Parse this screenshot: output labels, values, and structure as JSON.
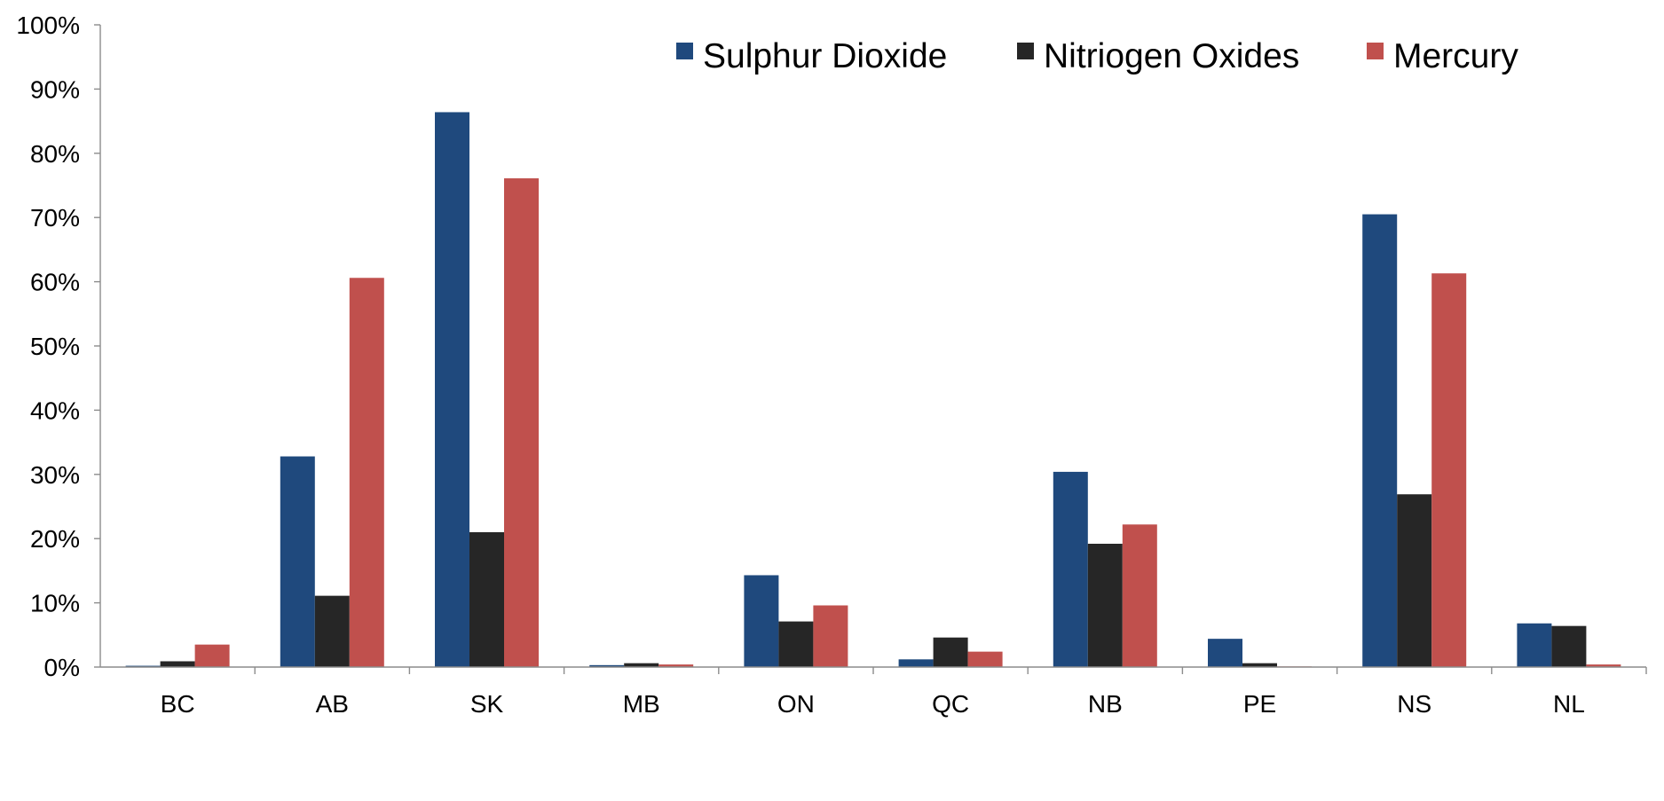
{
  "chart_data": {
    "type": "bar",
    "categories": [
      "BC",
      "AB",
      "SK",
      "MB",
      "ON",
      "QC",
      "NB",
      "PE",
      "NS",
      "NL"
    ],
    "series": [
      {
        "name": "Sulphur Dioxide",
        "color": "#1f497d",
        "values": [
          0.2,
          32.8,
          86.4,
          0.3,
          14.3,
          1.2,
          30.4,
          4.4,
          70.5,
          6.8
        ]
      },
      {
        "name": "Nitriogen Oxides",
        "color": "#262626",
        "values": [
          0.9,
          11.1,
          21.0,
          0.6,
          7.1,
          4.6,
          19.2,
          0.6,
          26.9,
          6.4
        ]
      },
      {
        "name": "Mercury",
        "color": "#c0504d",
        "values": [
          3.5,
          60.6,
          76.1,
          0.4,
          9.6,
          2.4,
          22.2,
          0.1,
          61.3,
          0.4
        ]
      }
    ],
    "ylim": [
      0,
      100
    ],
    "yticks": [
      "0%",
      "10%",
      "20%",
      "30%",
      "40%",
      "50%",
      "60%",
      "70%",
      "80%",
      "90%",
      "100%"
    ],
    "grid": true,
    "legend_position": "top-right"
  }
}
